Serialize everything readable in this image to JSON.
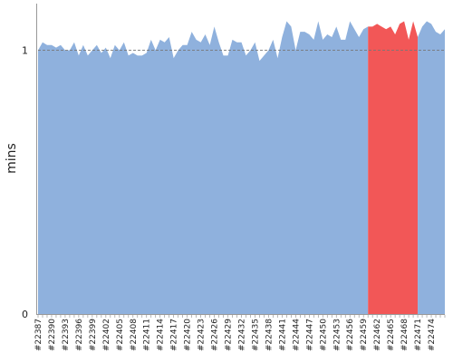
{
  "chart_data": {
    "type": "area",
    "title": "",
    "xlabel": "",
    "ylabel": "mins",
    "ylim": [
      0,
      1.17
    ],
    "yticks": [
      0,
      1
    ],
    "reference_line": {
      "y": 1,
      "style": "dashed"
    },
    "grid": false,
    "legend": "none",
    "x_tick_labels": [
      "#22387",
      "#22390",
      "#22393",
      "#22396",
      "#22399",
      "#22402",
      "#22405",
      "#22408",
      "#22411",
      "#22414",
      "#22417",
      "#22420",
      "#22423",
      "#22426",
      "#22429",
      "#22432",
      "#22435",
      "#22438",
      "#22441",
      "#22444",
      "#22447",
      "#22450",
      "#22453",
      "#22456",
      "#22459",
      "#22462",
      "#22465",
      "#22468",
      "#22471",
      "#22474"
    ],
    "x_first_build": 22387,
    "highlight_range": {
      "from": 22460,
      "to": 22471,
      "color": "#f25757"
    },
    "base_color": "#8fb1dd",
    "values": [
      1.0,
      1.03,
      1.02,
      1.02,
      1.01,
      1.02,
      1.0,
      1.0,
      1.03,
      0.98,
      1.02,
      0.98,
      1.0,
      1.02,
      0.99,
      1.01,
      0.97,
      1.02,
      1.0,
      1.03,
      0.98,
      0.99,
      0.98,
      0.98,
      0.99,
      1.04,
      1.0,
      1.04,
      1.03,
      1.05,
      0.97,
      1.0,
      1.02,
      1.02,
      1.07,
      1.04,
      1.03,
      1.06,
      1.02,
      1.09,
      1.03,
      0.98,
      0.98,
      1.04,
      1.03,
      1.03,
      0.98,
      1.0,
      1.03,
      0.96,
      0.98,
      1.0,
      1.04,
      0.97,
      1.05,
      1.11,
      1.09,
      1.0,
      1.07,
      1.07,
      1.06,
      1.04,
      1.11,
      1.04,
      1.06,
      1.05,
      1.09,
      1.04,
      1.04,
      1.11,
      1.08,
      1.05,
      1.08,
      1.09,
      1.09,
      1.1,
      1.09,
      1.08,
      1.09,
      1.06,
      1.1,
      1.11,
      1.04,
      1.11,
      1.05,
      1.09,
      1.11,
      1.1,
      1.07,
      1.06,
      1.08
    ]
  }
}
